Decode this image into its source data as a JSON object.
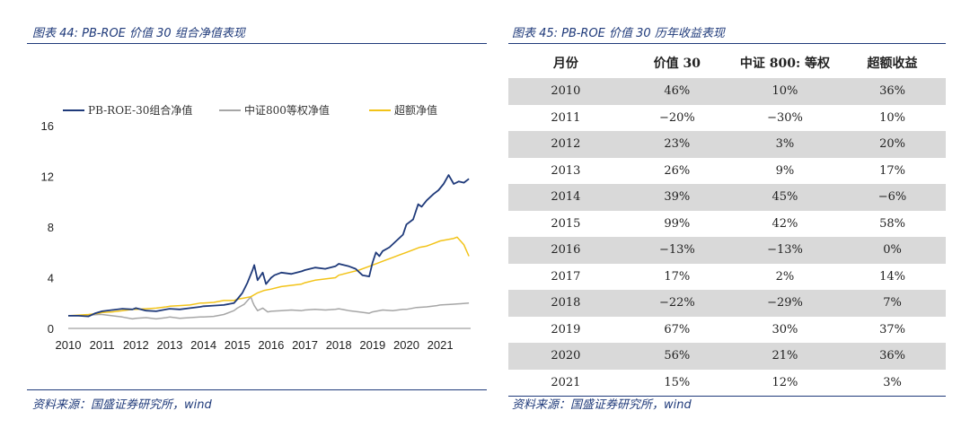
{
  "left": {
    "title": "图表 44:  PB-ROE 价值 30 组合净值表现",
    "source": "资料来源：国盛证券研究所，wind"
  },
  "right": {
    "title": "图表 45:  PB-ROE 价值 30 历年收益表现",
    "source": "资料来源：国盛证券研究所，wind"
  },
  "colors": {
    "navy": "#1f3a7a",
    "gray": "#a6a6a6",
    "gold": "#f2c318",
    "shade": "#d9d9d9"
  },
  "chart_data": {
    "type": "line",
    "title": "",
    "xlabel": "",
    "ylabel": "",
    "ylim": [
      0,
      16
    ],
    "xlim": [
      2010,
      2021.9
    ],
    "yticks": [
      0,
      4,
      8,
      12,
      16
    ],
    "xticks": [
      "2010",
      "2011",
      "2012",
      "2013",
      "2014",
      "2015",
      "2016",
      "2017",
      "2018",
      "2019",
      "2020",
      "2021"
    ],
    "legend_position": "top",
    "series": [
      {
        "name": "PB-ROE-30组合净值",
        "color": "#1f3a7a",
        "x": [
          2010.0,
          2010.3,
          2010.6,
          2010.8,
          2011.0,
          2011.3,
          2011.6,
          2011.9,
          2012.0,
          2012.3,
          2012.6,
          2012.9,
          2013.0,
          2013.3,
          2013.6,
          2013.9,
          2014.0,
          2014.3,
          2014.6,
          2014.9,
          2015.0,
          2015.15,
          2015.3,
          2015.45,
          2015.5,
          2015.6,
          2015.75,
          2015.85,
          2016.0,
          2016.1,
          2016.3,
          2016.6,
          2016.9,
          2017.0,
          2017.3,
          2017.6,
          2017.9,
          2018.0,
          2018.3,
          2018.5,
          2018.7,
          2018.9,
          2019.0,
          2019.1,
          2019.2,
          2019.3,
          2019.5,
          2019.7,
          2019.9,
          2020.0,
          2020.2,
          2020.35,
          2020.45,
          2020.6,
          2020.8,
          2020.95,
          2021.1,
          2021.25,
          2021.4,
          2021.55,
          2021.7,
          2021.85
        ],
        "values": [
          1.0,
          1.0,
          0.95,
          1.2,
          1.35,
          1.45,
          1.55,
          1.5,
          1.6,
          1.4,
          1.35,
          1.5,
          1.55,
          1.5,
          1.6,
          1.7,
          1.75,
          1.8,
          1.85,
          2.0,
          2.3,
          2.8,
          3.6,
          4.6,
          5.0,
          3.8,
          4.4,
          3.5,
          4.0,
          4.2,
          4.4,
          4.3,
          4.5,
          4.6,
          4.8,
          4.7,
          4.9,
          5.1,
          4.9,
          4.7,
          4.2,
          4.1,
          5.2,
          6.0,
          5.7,
          6.1,
          6.4,
          6.9,
          7.4,
          8.2,
          8.6,
          9.8,
          9.6,
          10.1,
          10.6,
          10.9,
          11.4,
          12.1,
          11.4,
          11.6,
          11.5,
          11.8
        ]
      },
      {
        "name": "中证800等权净值",
        "color": "#a6a6a6",
        "x": [
          2010.0,
          2010.3,
          2010.6,
          2010.9,
          2011.0,
          2011.3,
          2011.6,
          2011.9,
          2012.0,
          2012.3,
          2012.6,
          2012.9,
          2013.0,
          2013.3,
          2013.6,
          2013.9,
          2014.0,
          2014.3,
          2014.6,
          2014.9,
          2015.0,
          2015.2,
          2015.4,
          2015.45,
          2015.5,
          2015.6,
          2015.75,
          2015.9,
          2016.0,
          2016.3,
          2016.6,
          2016.9,
          2017.0,
          2017.3,
          2017.6,
          2017.9,
          2018.0,
          2018.3,
          2018.6,
          2018.9,
          2019.0,
          2019.3,
          2019.6,
          2019.9,
          2020.0,
          2020.3,
          2020.6,
          2020.9,
          2021.0,
          2021.3,
          2021.6,
          2021.85
        ],
        "values": [
          1.0,
          1.0,
          1.05,
          1.1,
          1.1,
          1.0,
          0.9,
          0.75,
          0.8,
          0.85,
          0.75,
          0.85,
          0.9,
          0.8,
          0.85,
          0.9,
          0.9,
          0.95,
          1.1,
          1.4,
          1.6,
          1.9,
          2.5,
          2.1,
          1.8,
          1.4,
          1.6,
          1.3,
          1.35,
          1.4,
          1.45,
          1.4,
          1.45,
          1.5,
          1.45,
          1.5,
          1.55,
          1.4,
          1.3,
          1.2,
          1.3,
          1.45,
          1.4,
          1.5,
          1.5,
          1.65,
          1.7,
          1.8,
          1.85,
          1.9,
          1.95,
          2.0
        ]
      },
      {
        "name": "超额净值",
        "color": "#f2c318",
        "x": [
          2010.0,
          2010.3,
          2010.6,
          2010.9,
          2011.0,
          2011.3,
          2011.6,
          2011.9,
          2012.0,
          2012.3,
          2012.6,
          2012.9,
          2013.0,
          2013.3,
          2013.6,
          2013.9,
          2014.0,
          2014.3,
          2014.6,
          2014.9,
          2015.0,
          2015.2,
          2015.4,
          2015.6,
          2015.8,
          2016.0,
          2016.3,
          2016.6,
          2016.9,
          2017.0,
          2017.3,
          2017.6,
          2017.9,
          2018.0,
          2018.3,
          2018.6,
          2018.9,
          2019.0,
          2019.2,
          2019.4,
          2019.6,
          2019.8,
          2020.0,
          2020.2,
          2020.4,
          2020.6,
          2020.8,
          2021.0,
          2021.2,
          2021.4,
          2021.5,
          2021.6,
          2021.7,
          2021.85
        ],
        "values": [
          1.0,
          1.05,
          1.1,
          1.2,
          1.25,
          1.3,
          1.4,
          1.5,
          1.5,
          1.55,
          1.6,
          1.7,
          1.75,
          1.8,
          1.85,
          2.0,
          2.0,
          2.05,
          2.2,
          2.2,
          2.3,
          2.4,
          2.5,
          2.8,
          3.0,
          3.1,
          3.3,
          3.4,
          3.5,
          3.6,
          3.8,
          3.9,
          4.0,
          4.2,
          4.4,
          4.6,
          4.9,
          5.0,
          5.2,
          5.4,
          5.6,
          5.8,
          6.0,
          6.2,
          6.4,
          6.5,
          6.7,
          6.9,
          7.0,
          7.1,
          7.2,
          6.9,
          6.6,
          5.7
        ]
      }
    ]
  },
  "table": {
    "headers": [
      "月份",
      "价值 30",
      "中证 800: 等权",
      "超额收益"
    ],
    "rows": [
      [
        "2010",
        "46%",
        "10%",
        "36%"
      ],
      [
        "2011",
        "−20%",
        "−30%",
        "10%"
      ],
      [
        "2012",
        "23%",
        "3%",
        "20%"
      ],
      [
        "2013",
        "26%",
        "9%",
        "17%"
      ],
      [
        "2014",
        "39%",
        "45%",
        "−6%"
      ],
      [
        "2015",
        "99%",
        "42%",
        "58%"
      ],
      [
        "2016",
        "−13%",
        "−13%",
        "0%"
      ],
      [
        "2017",
        "17%",
        "2%",
        "14%"
      ],
      [
        "2018",
        "−22%",
        "−29%",
        "7%"
      ],
      [
        "2019",
        "67%",
        "30%",
        "37%"
      ],
      [
        "2020",
        "56%",
        "21%",
        "36%"
      ],
      [
        "2021",
        "15%",
        "12%",
        "3%"
      ]
    ]
  }
}
